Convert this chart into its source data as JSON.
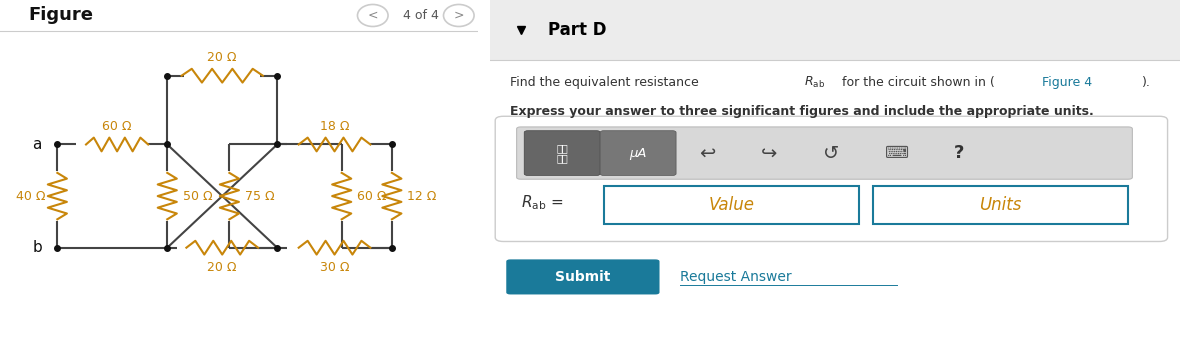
{
  "figure_title": "Figure",
  "nav_text": "4 of 4",
  "part_label": "Part D",
  "bold_text": "Express your answer to three significant figures and include the appropriate units.",
  "value_placeholder": "Value",
  "units_placeholder": "Units",
  "submit_text": "Submit",
  "request_text": "Request Answer",
  "submit_color": "#1a7a9a",
  "bg_color": "#ffffff",
  "resistor_color": "#c8860a",
  "wire_color": "#444444",
  "node_color": "#111111",
  "label_color": "#111111",
  "nav_circle_color": "#cccccc",
  "input_border_color": "#1a7a9a",
  "toolbar_bg": "#d8d8d8",
  "toolbar_border": "#bbbbbb",
  "panel_border": "#cccccc",
  "link_color": "#1a7a9a",
  "divider_color": "#cccccc",
  "part_bg": "#ececec"
}
